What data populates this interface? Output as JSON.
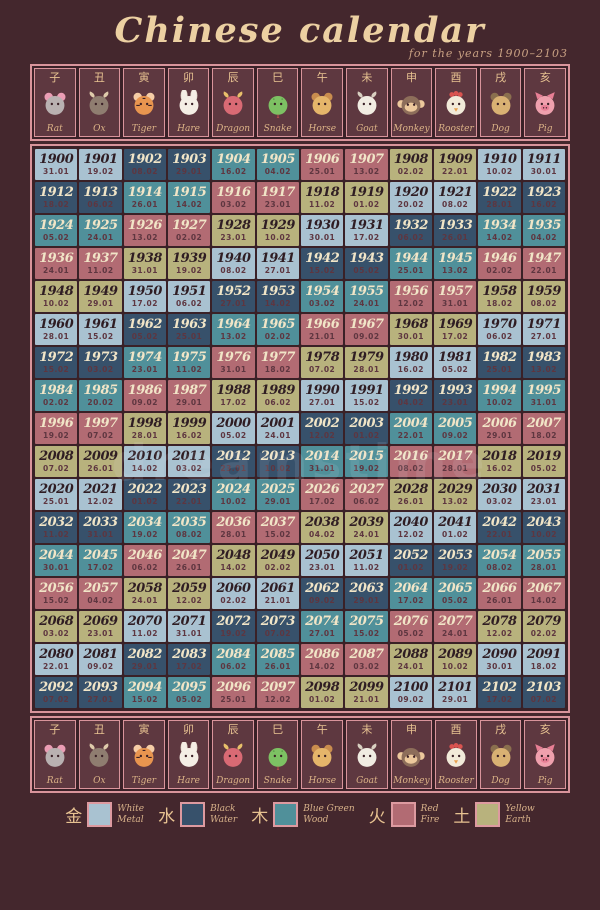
{
  "title": "Chinese calendar",
  "subtitle": "for the years 1900–2103",
  "watermark": "dreamstime",
  "zodiac": [
    {
      "char": "子",
      "name": "Rat",
      "shape": "round",
      "face": "#b9b1b1",
      "ear": "#eb9db4",
      "icon": "rat-icon"
    },
    {
      "char": "丑",
      "name": "Ox",
      "shape": "horns",
      "face": "#8f7d70",
      "ear": "#dfcbab",
      "icon": "ox-icon"
    },
    {
      "char": "寅",
      "name": "Tiger",
      "shape": "tiger",
      "face": "#e8954f",
      "ear": "#f5cda6",
      "icon": "tiger-icon"
    },
    {
      "char": "卯",
      "name": "Hare",
      "shape": "long-ears",
      "face": "#f4eee5",
      "ear": "#e3d8ca",
      "icon": "hare-icon"
    },
    {
      "char": "辰",
      "name": "Dragon",
      "shape": "horns",
      "face": "#d96a74",
      "ear": "#e8c06a",
      "icon": "dragon-icon"
    },
    {
      "char": "巳",
      "name": "Snake",
      "shape": "snake",
      "face": "#7dc163",
      "ear": "#5c9e49",
      "icon": "snake-icon"
    },
    {
      "char": "午",
      "name": "Horse",
      "shape": "round",
      "face": "#e5b56a",
      "ear": "#c98d4e",
      "icon": "horse-icon"
    },
    {
      "char": "未",
      "name": "Goat",
      "shape": "horns",
      "face": "#f1ece2",
      "ear": "#d8cfc0",
      "icon": "goat-icon"
    },
    {
      "char": "申",
      "name": "Monkey",
      "shape": "monkey",
      "face": "#8d6e5a",
      "ear": "#ecc89c",
      "icon": "monkey-icon"
    },
    {
      "char": "酉",
      "name": "Rooster",
      "shape": "comb",
      "face": "#f2ead9",
      "ear": "#d9534f",
      "icon": "rooster-icon"
    },
    {
      "char": "戌",
      "name": "Dog",
      "shape": "round",
      "face": "#d9b173",
      "ear": "#8a6f4e",
      "icon": "dog-icon"
    },
    {
      "char": "亥",
      "name": "Pig",
      "shape": "pig",
      "face": "#efa0ad",
      "ear": "#e87f95",
      "icon": "pig-icon"
    }
  ],
  "elements": {
    "metal": {
      "color": "#a9c2d1",
      "char": "金",
      "name": "White Metal",
      "year_text": "#2f1d23"
    },
    "water": {
      "color": "#37516b",
      "char": "水",
      "name": "Black Water",
      "year_text": "#f1e5c7"
    },
    "wood": {
      "color": "#50909a",
      "char": "木",
      "name": "Blue Green Wood",
      "year_text": "#f1e5c7"
    },
    "fire": {
      "color": "#b26b73",
      "char": "火",
      "name": "Red Fire",
      "year_text": "#f1e5c7"
    },
    "earth": {
      "color": "#b8b27d",
      "char": "土",
      "name": "Yellow Earth",
      "year_text": "#2f1d23"
    }
  },
  "element_by_last_digit": {
    "0": "metal",
    "1": "metal",
    "2": "water",
    "3": "water",
    "4": "wood",
    "5": "wood",
    "6": "fire",
    "7": "fire",
    "8": "earth",
    "9": "earth"
  },
  "legend": [
    {
      "char": "金",
      "line1": "White",
      "line2": "Metal",
      "element": "metal"
    },
    {
      "char": "水",
      "line1": "Black",
      "line2": "Water",
      "element": "water"
    },
    {
      "char": "木",
      "line1": "Blue Green",
      "line2": "Wood",
      "element": "wood"
    },
    {
      "char": "火",
      "line1": "Red",
      "line2": "Fire",
      "element": "fire"
    },
    {
      "char": "土",
      "line1": "Yellow",
      "line2": "Earth",
      "element": "earth"
    }
  ],
  "chart_data": {
    "type": "table",
    "title": "Chinese calendar",
    "subtitle": "for the years 1900–2103",
    "columns": [
      "Rat",
      "Ox",
      "Tiger",
      "Hare",
      "Dragon",
      "Snake",
      "Horse",
      "Goat",
      "Monkey",
      "Rooster",
      "Dog",
      "Pig"
    ],
    "column_chars": [
      "子",
      "丑",
      "寅",
      "卯",
      "辰",
      "巳",
      "午",
      "未",
      "申",
      "酉",
      "戌",
      "亥"
    ],
    "cell_format": "year / new-year date (dd.mm)",
    "rows": [
      [
        [
          "1900",
          "31.01"
        ],
        [
          "1901",
          "19.02"
        ],
        [
          "1902",
          "08.02"
        ],
        [
          "1903",
          "29.01"
        ],
        [
          "1904",
          "16.02"
        ],
        [
          "1905",
          "04.02"
        ],
        [
          "1906",
          "25.01"
        ],
        [
          "1907",
          "13.02"
        ],
        [
          "1908",
          "02.02"
        ],
        [
          "1909",
          "22.01"
        ],
        [
          "1910",
          "10.02"
        ],
        [
          "1911",
          "30.01"
        ]
      ],
      [
        [
          "1912",
          "18.02"
        ],
        [
          "1913",
          "06.02"
        ],
        [
          "1914",
          "26.01"
        ],
        [
          "1915",
          "14.02"
        ],
        [
          "1916",
          "03.02"
        ],
        [
          "1917",
          "23.01"
        ],
        [
          "1918",
          "11.02"
        ],
        [
          "1919",
          "01.02"
        ],
        [
          "1920",
          "20.02"
        ],
        [
          "1921",
          "08.02"
        ],
        [
          "1922",
          "28.01"
        ],
        [
          "1923",
          "16.02"
        ]
      ],
      [
        [
          "1924",
          "05.02"
        ],
        [
          "1925",
          "24.01"
        ],
        [
          "1926",
          "13.02"
        ],
        [
          "1927",
          "02.02"
        ],
        [
          "1928",
          "23.01"
        ],
        [
          "1929",
          "10.02"
        ],
        [
          "1930",
          "30.01"
        ],
        [
          "1931",
          "17.02"
        ],
        [
          "1932",
          "06.02"
        ],
        [
          "1933",
          "26.01"
        ],
        [
          "1934",
          "14.02"
        ],
        [
          "1935",
          "04.02"
        ]
      ],
      [
        [
          "1936",
          "24.01"
        ],
        [
          "1937",
          "11.02"
        ],
        [
          "1938",
          "31.01"
        ],
        [
          "1939",
          "19.02"
        ],
        [
          "1940",
          "08.02"
        ],
        [
          "1941",
          "27.01"
        ],
        [
          "1942",
          "15.02"
        ],
        [
          "1943",
          "05.02"
        ],
        [
          "1944",
          "25.01"
        ],
        [
          "1945",
          "13.02"
        ],
        [
          "1946",
          "02.02"
        ],
        [
          "1947",
          "22.01"
        ]
      ],
      [
        [
          "1948",
          "10.02"
        ],
        [
          "1949",
          "29.01"
        ],
        [
          "1950",
          "17.02"
        ],
        [
          "1951",
          "06.02"
        ],
        [
          "1952",
          "27.01"
        ],
        [
          "1953",
          "14.02"
        ],
        [
          "1954",
          "03.02"
        ],
        [
          "1955",
          "24.01"
        ],
        [
          "1956",
          "12.02"
        ],
        [
          "1957",
          "31.01"
        ],
        [
          "1958",
          "18.02"
        ],
        [
          "1959",
          "08.02"
        ]
      ],
      [
        [
          "1960",
          "28.01"
        ],
        [
          "1961",
          "15.02"
        ],
        [
          "1962",
          "05.02"
        ],
        [
          "1963",
          "25.01"
        ],
        [
          "1964",
          "13.02"
        ],
        [
          "1965",
          "02.02"
        ],
        [
          "1966",
          "21.01"
        ],
        [
          "1967",
          "09.02"
        ],
        [
          "1968",
          "30.01"
        ],
        [
          "1969",
          "17.02"
        ],
        [
          "1970",
          "06.02"
        ],
        [
          "1971",
          "27.01"
        ]
      ],
      [
        [
          "1972",
          "15.02"
        ],
        [
          "1973",
          "03.02"
        ],
        [
          "1974",
          "23.01"
        ],
        [
          "1975",
          "11.02"
        ],
        [
          "1976",
          "31.01"
        ],
        [
          "1977",
          "18.02"
        ],
        [
          "1978",
          "07.02"
        ],
        [
          "1979",
          "28.01"
        ],
        [
          "1980",
          "16.02"
        ],
        [
          "1981",
          "05.02"
        ],
        [
          "1982",
          "25.01"
        ],
        [
          "1983",
          "13.02"
        ]
      ],
      [
        [
          "1984",
          "02.02"
        ],
        [
          "1985",
          "20.02"
        ],
        [
          "1986",
          "09.02"
        ],
        [
          "1987",
          "29.01"
        ],
        [
          "1988",
          "17.02"
        ],
        [
          "1989",
          "06.02"
        ],
        [
          "1990",
          "27.01"
        ],
        [
          "1991",
          "15.02"
        ],
        [
          "1992",
          "04.02"
        ],
        [
          "1993",
          "23.01"
        ],
        [
          "1994",
          "10.02"
        ],
        [
          "1995",
          "31.01"
        ]
      ],
      [
        [
          "1996",
          "19.02"
        ],
        [
          "1997",
          "07.02"
        ],
        [
          "1998",
          "28.01"
        ],
        [
          "1999",
          "16.02"
        ],
        [
          "2000",
          "05.02"
        ],
        [
          "2001",
          "24.01"
        ],
        [
          "2002",
          "12.02"
        ],
        [
          "2003",
          "01.02"
        ],
        [
          "2004",
          "22.01"
        ],
        [
          "2005",
          "09.02"
        ],
        [
          "2006",
          "29.01"
        ],
        [
          "2007",
          "18.02"
        ]
      ],
      [
        [
          "2008",
          "07.02"
        ],
        [
          "2009",
          "26.01"
        ],
        [
          "2010",
          "14.02"
        ],
        [
          "2011",
          "03.02"
        ],
        [
          "2012",
          "23.01"
        ],
        [
          "2013",
          "10.02"
        ],
        [
          "2014",
          "31.01"
        ],
        [
          "2015",
          "19.02"
        ],
        [
          "2016",
          "08.02"
        ],
        [
          "2017",
          "28.01"
        ],
        [
          "2018",
          "16.02"
        ],
        [
          "2019",
          "05.02"
        ]
      ],
      [
        [
          "2020",
          "25.01"
        ],
        [
          "2021",
          "12.02"
        ],
        [
          "2022",
          "01.02"
        ],
        [
          "2023",
          "22.01"
        ],
        [
          "2024",
          "10.02"
        ],
        [
          "2025",
          "29.01"
        ],
        [
          "2026",
          "17.02"
        ],
        [
          "2027",
          "06.02"
        ],
        [
          "2028",
          "26.01"
        ],
        [
          "2029",
          "13.02"
        ],
        [
          "2030",
          "03.02"
        ],
        [
          "2031",
          "23.01"
        ]
      ],
      [
        [
          "2032",
          "11.02"
        ],
        [
          "2033",
          "31.01"
        ],
        [
          "2034",
          "19.02"
        ],
        [
          "2035",
          "08.02"
        ],
        [
          "2036",
          "28.01"
        ],
        [
          "2037",
          "15.02"
        ],
        [
          "2038",
          "04.02"
        ],
        [
          "2039",
          "24.01"
        ],
        [
          "2040",
          "12.02"
        ],
        [
          "2041",
          "01.02"
        ],
        [
          "2042",
          "22.01"
        ],
        [
          "2043",
          "10.02"
        ]
      ],
      [
        [
          "2044",
          "30.01"
        ],
        [
          "2045",
          "17.02"
        ],
        [
          "2046",
          "06.02"
        ],
        [
          "2047",
          "26.01"
        ],
        [
          "2048",
          "14.02"
        ],
        [
          "2049",
          "02.02"
        ],
        [
          "2050",
          "23.01"
        ],
        [
          "2051",
          "11.02"
        ],
        [
          "2052",
          "01.02"
        ],
        [
          "2053",
          "19.02"
        ],
        [
          "2054",
          "08.02"
        ],
        [
          "2055",
          "28.01"
        ]
      ],
      [
        [
          "2056",
          "15.02"
        ],
        [
          "2057",
          "04.02"
        ],
        [
          "2058",
          "24.01"
        ],
        [
          "2059",
          "12.02"
        ],
        [
          "2060",
          "02.02"
        ],
        [
          "2061",
          "21.01"
        ],
        [
          "2062",
          "09.02"
        ],
        [
          "2063",
          "29.01"
        ],
        [
          "2064",
          "17.02"
        ],
        [
          "2065",
          "05.02"
        ],
        [
          "2066",
          "26.01"
        ],
        [
          "2067",
          "14.02"
        ]
      ],
      [
        [
          "2068",
          "03.02"
        ],
        [
          "2069",
          "23.01"
        ],
        [
          "2070",
          "11.02"
        ],
        [
          "2071",
          "31.01"
        ],
        [
          "2072",
          "19.02"
        ],
        [
          "2073",
          "07.02"
        ],
        [
          "2074",
          "27.01"
        ],
        [
          "2075",
          "15.02"
        ],
        [
          "2076",
          "05.02"
        ],
        [
          "2077",
          "24.01"
        ],
        [
          "2078",
          "12.02"
        ],
        [
          "2079",
          "02.02"
        ]
      ],
      [
        [
          "2080",
          "22.01"
        ],
        [
          "2081",
          "09.02"
        ],
        [
          "2082",
          "29.01"
        ],
        [
          "2083",
          "17.02"
        ],
        [
          "2084",
          "06.02"
        ],
        [
          "2085",
          "26.01"
        ],
        [
          "2086",
          "14.02"
        ],
        [
          "2087",
          "03.02"
        ],
        [
          "2088",
          "24.01"
        ],
        [
          "2089",
          "10.02"
        ],
        [
          "2090",
          "30.01"
        ],
        [
          "2091",
          "18.02"
        ]
      ],
      [
        [
          "2092",
          "07.02"
        ],
        [
          "2093",
          "27.01"
        ],
        [
          "2094",
          "15.02"
        ],
        [
          "2095",
          "05.02"
        ],
        [
          "2096",
          "25.01"
        ],
        [
          "2097",
          "12.02"
        ],
        [
          "2098",
          "01.02"
        ],
        [
          "2099",
          "21.01"
        ],
        [
          "2100",
          "09.02"
        ],
        [
          "2101",
          "29.01"
        ],
        [
          "2102",
          "17.02"
        ],
        [
          "2103",
          "07.02"
        ]
      ]
    ]
  }
}
